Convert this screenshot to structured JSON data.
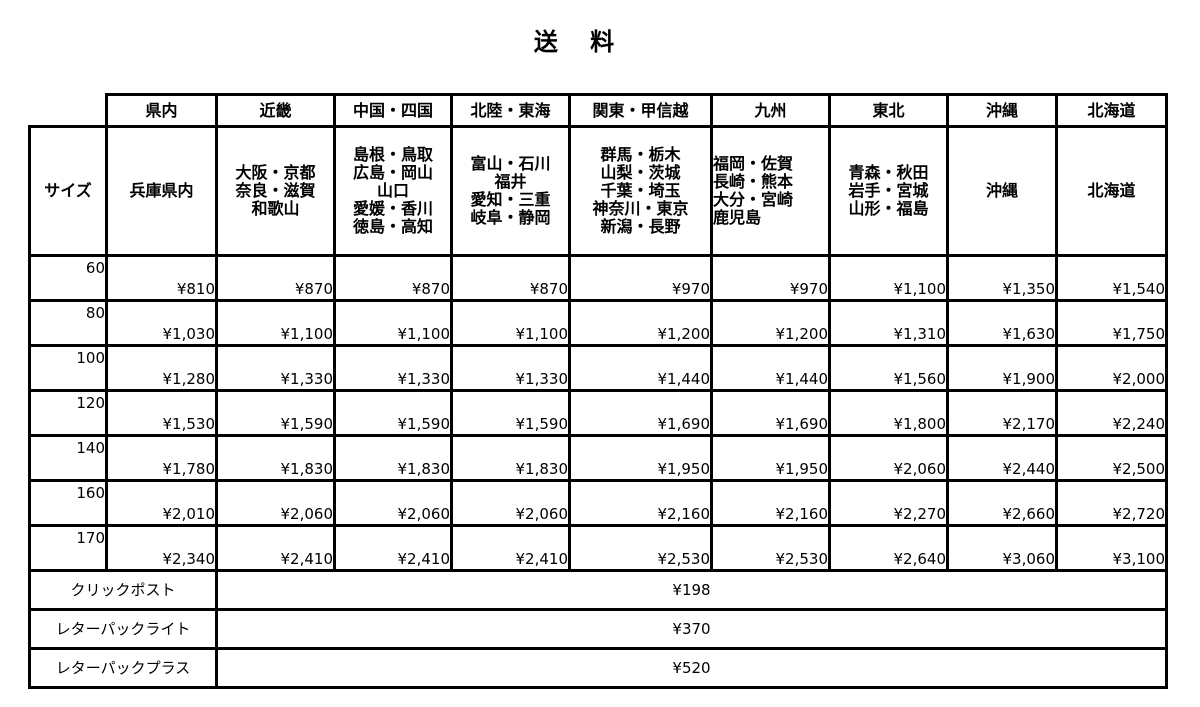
{
  "title": "送 料",
  "size_label": "サイズ",
  "regions": [
    {
      "name": "県内",
      "areas": "兵庫県内"
    },
    {
      "name": "近畿",
      "areas": "大阪・京都\n奈良・滋賀\n和歌山"
    },
    {
      "name": "中国・四国",
      "areas": "島根・鳥取\n広島・岡山\n山口\n愛媛・香川\n徳島・高知"
    },
    {
      "name": "北陸・東海",
      "areas": "富山・石川\n福井\n愛知・三重\n岐阜・静岡"
    },
    {
      "name": "関東・甲信越",
      "areas": "群馬・栃木\n山梨・茨城\n千葉・埼玉\n神奈川・東京\n新潟・長野"
    },
    {
      "name": "九州",
      "areas": "福岡・佐賀\n長崎・熊本\n大分・宮崎\n鹿児島"
    },
    {
      "name": "東北",
      "areas": "青森・秋田\n岩手・宮城\n山形・福島"
    },
    {
      "name": "沖縄",
      "areas": "沖縄"
    },
    {
      "name": "北海道",
      "areas": "北海道"
    }
  ],
  "rows": [
    {
      "size": "60",
      "prices": [
        "¥810",
        "¥870",
        "¥870",
        "¥870",
        "¥970",
        "¥970",
        "¥1,100",
        "¥1,350",
        "¥1,540"
      ]
    },
    {
      "size": "80",
      "prices": [
        "¥1,030",
        "¥1,100",
        "¥1,100",
        "¥1,100",
        "¥1,200",
        "¥1,200",
        "¥1,310",
        "¥1,630",
        "¥1,750"
      ]
    },
    {
      "size": "100",
      "prices": [
        "¥1,280",
        "¥1,330",
        "¥1,330",
        "¥1,330",
        "¥1,440",
        "¥1,440",
        "¥1,560",
        "¥1,900",
        "¥2,000"
      ]
    },
    {
      "size": "120",
      "prices": [
        "¥1,530",
        "¥1,590",
        "¥1,590",
        "¥1,590",
        "¥1,690",
        "¥1,690",
        "¥1,800",
        "¥2,170",
        "¥2,240"
      ]
    },
    {
      "size": "140",
      "prices": [
        "¥1,780",
        "¥1,830",
        "¥1,830",
        "¥1,830",
        "¥1,950",
        "¥1,950",
        "¥2,060",
        "¥2,440",
        "¥2,500"
      ]
    },
    {
      "size": "160",
      "prices": [
        "¥2,010",
        "¥2,060",
        "¥2,060",
        "¥2,060",
        "¥2,160",
        "¥2,160",
        "¥2,270",
        "¥2,660",
        "¥2,720"
      ]
    },
    {
      "size": "170",
      "prices": [
        "¥2,340",
        "¥2,410",
        "¥2,410",
        "¥2,410",
        "¥2,530",
        "¥2,530",
        "¥2,640",
        "¥3,060",
        "¥3,100"
      ]
    }
  ],
  "flat_rates": [
    {
      "label": "クリックポスト",
      "price": "¥198"
    },
    {
      "label": "レターパックライト",
      "price": "¥370"
    },
    {
      "label": "レターパックプラス",
      "price": "¥520"
    }
  ]
}
